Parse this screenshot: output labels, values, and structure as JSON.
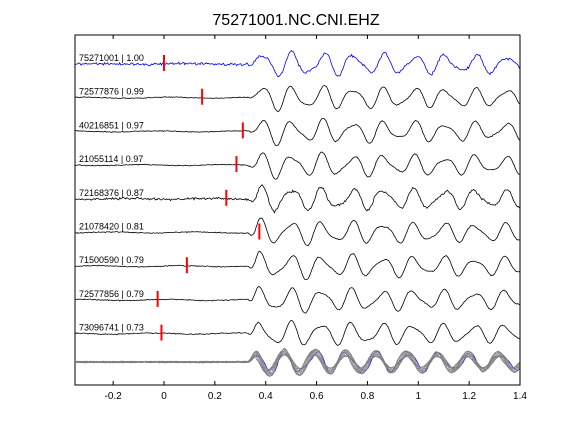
{
  "chart_data": {
    "type": "line",
    "title": "75271001.NC.CNI.EHZ",
    "xlim": [
      -0.35,
      1.4
    ],
    "xticks": [
      "-0.2",
      "0",
      "0.2",
      "0.4",
      "0.6",
      "0.8",
      "1",
      "1.2",
      "1.4"
    ],
    "xtick_values": [
      -0.2,
      0,
      0.2,
      0.4,
      0.6,
      0.8,
      1.0,
      1.2,
      1.4
    ],
    "grid": false,
    "reference_color": "#0000ff",
    "trace_color": "#000000",
    "pick_color": "#ff0000",
    "stack_color": "#808080",
    "series": [
      {
        "name": "75271001 | 1.00",
        "pick_time": 0.0,
        "reference": true
      },
      {
        "name": "72577876 | 0.99",
        "pick_time": 0.15
      },
      {
        "name": "40216851 | 0.97",
        "pick_time": 0.31
      },
      {
        "name": "21055114 | 0.97",
        "pick_time": 0.285
      },
      {
        "name": "72168376 | 0.87",
        "pick_time": 0.245
      },
      {
        "name": "21078420 | 0.81",
        "pick_time": 0.375
      },
      {
        "name": "71500590 | 0.79",
        "pick_time": 0.09
      },
      {
        "name": "72577856 | 0.79",
        "pick_time": -0.025
      },
      {
        "name": "73096741 | 0.73",
        "pick_time": -0.01
      }
    ],
    "stack": {
      "name": "",
      "traces": 9
    }
  }
}
